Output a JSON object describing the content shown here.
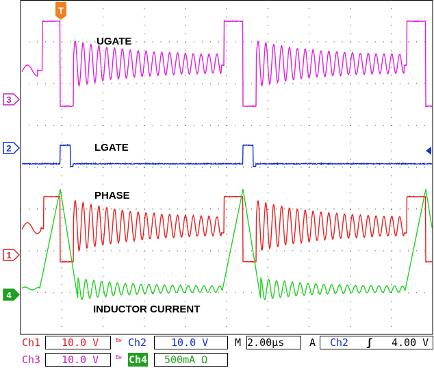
{
  "chart_data": {
    "type": "line",
    "title": "",
    "xlabel": "",
    "ylabel": "",
    "grid": true,
    "x_divisions": 10,
    "y_divisions": 8,
    "time_per_div_us": 2.0,
    "trigger_marker": "T",
    "series": [
      {
        "name": "UGATE",
        "channel": "3",
        "color": "#e020e0",
        "scale": "10.0 V"
      },
      {
        "name": "LGATE",
        "channel": "2",
        "color": "#1030d0",
        "scale": "10.0 V"
      },
      {
        "name": "PHASE",
        "channel": "1",
        "color": "#e82020",
        "scale": "10.0 V"
      },
      {
        "name": "INDUCTOR CURRENT",
        "channel": "4",
        "color": "#20d020",
        "scale": "500mA Ω"
      }
    ],
    "ground_markers": [
      "3",
      "2",
      "1",
      "4"
    ]
  },
  "readout": {
    "ch1_label": "Ch1",
    "ch1_scale": "10.0 V",
    "ch2_label": "Ch2",
    "ch2_scale": "10.0 V",
    "ch3_label": "Ch3",
    "ch3_scale": "10.0 V",
    "ch4_label": "Ch4",
    "ch4_scale": "500mA Ω",
    "bw_label": "B",
    "bw_sub": "W",
    "timebase": "M 2.00µs",
    "trigger_prefix": "A",
    "trigger_source": "Ch2",
    "trigger_slope": "ʃ",
    "trigger_level": "4.00 V"
  }
}
